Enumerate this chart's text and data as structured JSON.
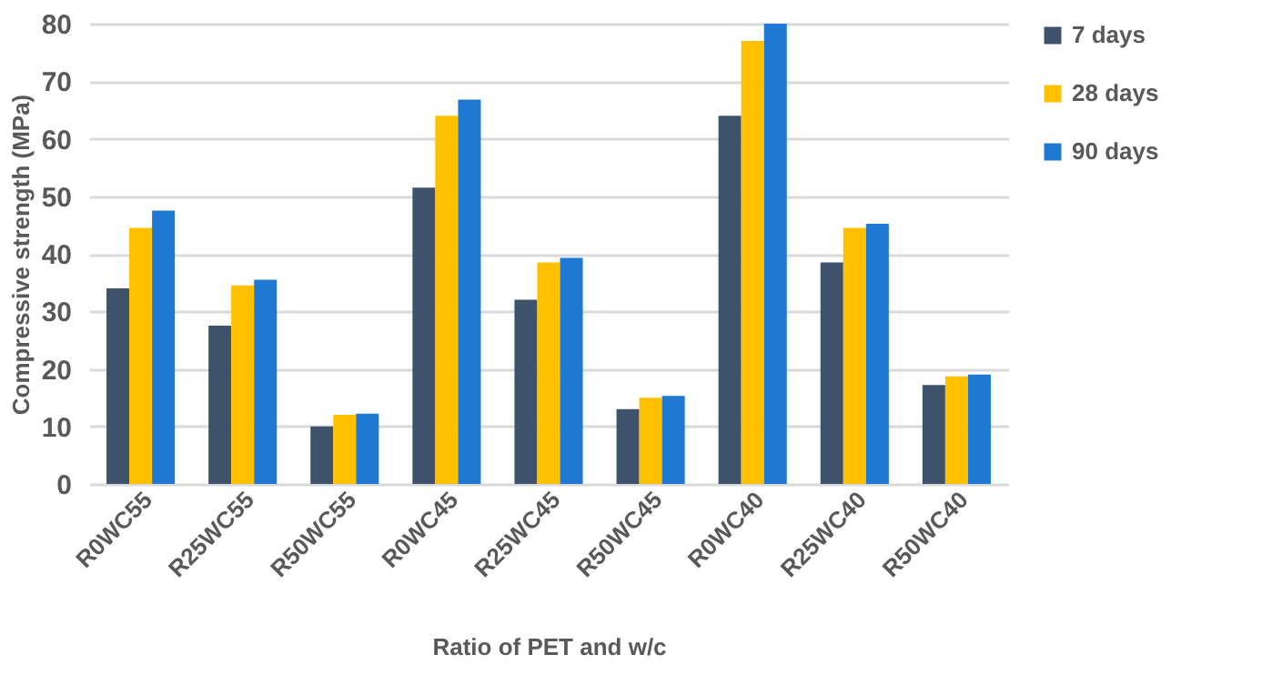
{
  "chart_data": {
    "type": "bar",
    "xlabel": "Ratio of PET and w/c",
    "ylabel": "Compressive strength (MPa)",
    "categories": [
      "R0WC55",
      "R25WC55",
      "R50WC55",
      "R0WC45",
      "R25WC45",
      "R50WC45",
      "R0WC40",
      "R25WC40",
      "R50WC40"
    ],
    "series": [
      {
        "name": "7 days",
        "color": "#3e536b",
        "values": [
          34,
          27.5,
          10,
          51.5,
          32,
          13,
          64,
          38.5,
          17.2
        ]
      },
      {
        "name": "28 days",
        "color": "#ffc000",
        "values": [
          44.5,
          34.5,
          12,
          64,
          38.5,
          15,
          77,
          44.5,
          18.7
        ]
      },
      {
        "name": "90 days",
        "color": "#1f78d1",
        "values": [
          47.5,
          35.5,
          12.2,
          66.8,
          39.3,
          15.3,
          80,
          45.2,
          19
        ]
      }
    ],
    "ylim": [
      0,
      80
    ],
    "yticks": [
      0,
      10,
      20,
      30,
      40,
      50,
      60,
      70,
      80
    ],
    "grid": "y",
    "legend": "right"
  }
}
